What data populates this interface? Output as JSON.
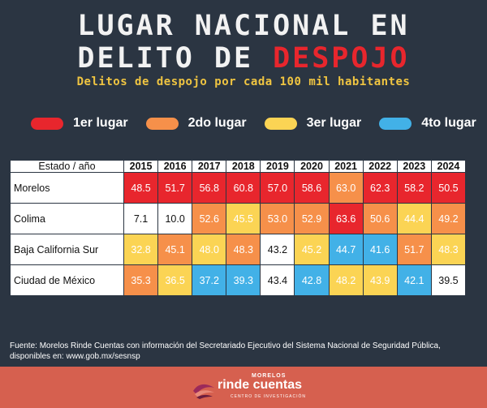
{
  "header": {
    "title_line1": "LUGAR NACIONAL EN",
    "title_line2_prefix": "DELITO DE ",
    "title_line2_accent": "DESPOJO",
    "subtitle": "Delitos de despojo por cada 100 mil habitantes"
  },
  "colors": {
    "background": "#2b3542",
    "first": "#e8262d",
    "second": "#f6904a",
    "third": "#fbd454",
    "fourth": "#42b1e7",
    "subtitle": "#f0c541",
    "footer": "#d6604f"
  },
  "legend": [
    {
      "label": "1er lugar",
      "rank": 1
    },
    {
      "label": "2do lugar",
      "rank": 2
    },
    {
      "label": "3er lugar",
      "rank": 3
    },
    {
      "label": "4to lugar",
      "rank": 4
    }
  ],
  "chart_data": {
    "type": "table",
    "title": "Lugar nacional en delito de despojo",
    "subtitle": "Delitos de despojo por cada 100 mil habitantes",
    "header_label": "Estado / año",
    "years": [
      "2015",
      "2016",
      "2017",
      "2018",
      "2019",
      "2020",
      "2021",
      "2022",
      "2023",
      "2024"
    ],
    "rows": [
      {
        "state": "Morelos",
        "values": [
          "48.5",
          "51.7",
          "56.8",
          "60.8",
          "57.0",
          "58.6",
          "63.0",
          "62.3",
          "58.2",
          "50.5"
        ],
        "ranks": [
          1,
          1,
          1,
          1,
          1,
          1,
          2,
          1,
          1,
          1
        ]
      },
      {
        "state": "Colima",
        "values": [
          "7.1",
          "10.0",
          "52.6",
          "45.5",
          "53.0",
          "52.9",
          "63.6",
          "50.6",
          "44.4",
          "49.2"
        ],
        "ranks": [
          0,
          0,
          2,
          3,
          2,
          2,
          1,
          2,
          3,
          2
        ]
      },
      {
        "state": "Baja California Sur",
        "values": [
          "32.8",
          "45.1",
          "48.0",
          "48.3",
          "43.2",
          "45.2",
          "44.7",
          "41.6",
          "51.7",
          "48.3"
        ],
        "ranks": [
          3,
          2,
          3,
          2,
          0,
          3,
          4,
          4,
          2,
          3
        ]
      },
      {
        "state": "Ciudad de México",
        "values": [
          "35.3",
          "36.5",
          "37.2",
          "39.3",
          "43.4",
          "42.8",
          "48.2",
          "43.9",
          "42.1",
          "39.5"
        ],
        "ranks": [
          2,
          3,
          4,
          4,
          0,
          4,
          3,
          3,
          4,
          0
        ]
      }
    ]
  },
  "footer": {
    "source": "Fuente: Morelos Rinde Cuentas con información del Secretariado Ejecutivo del Sistema Nacional de Seguridad Pública, disponibles en: www.gob.mx/sesnsp",
    "logo_top": "MORELOS",
    "logo_main": "rinde cuentas",
    "logo_sub": "CENTRO DE INVESTIGACIÓN"
  }
}
